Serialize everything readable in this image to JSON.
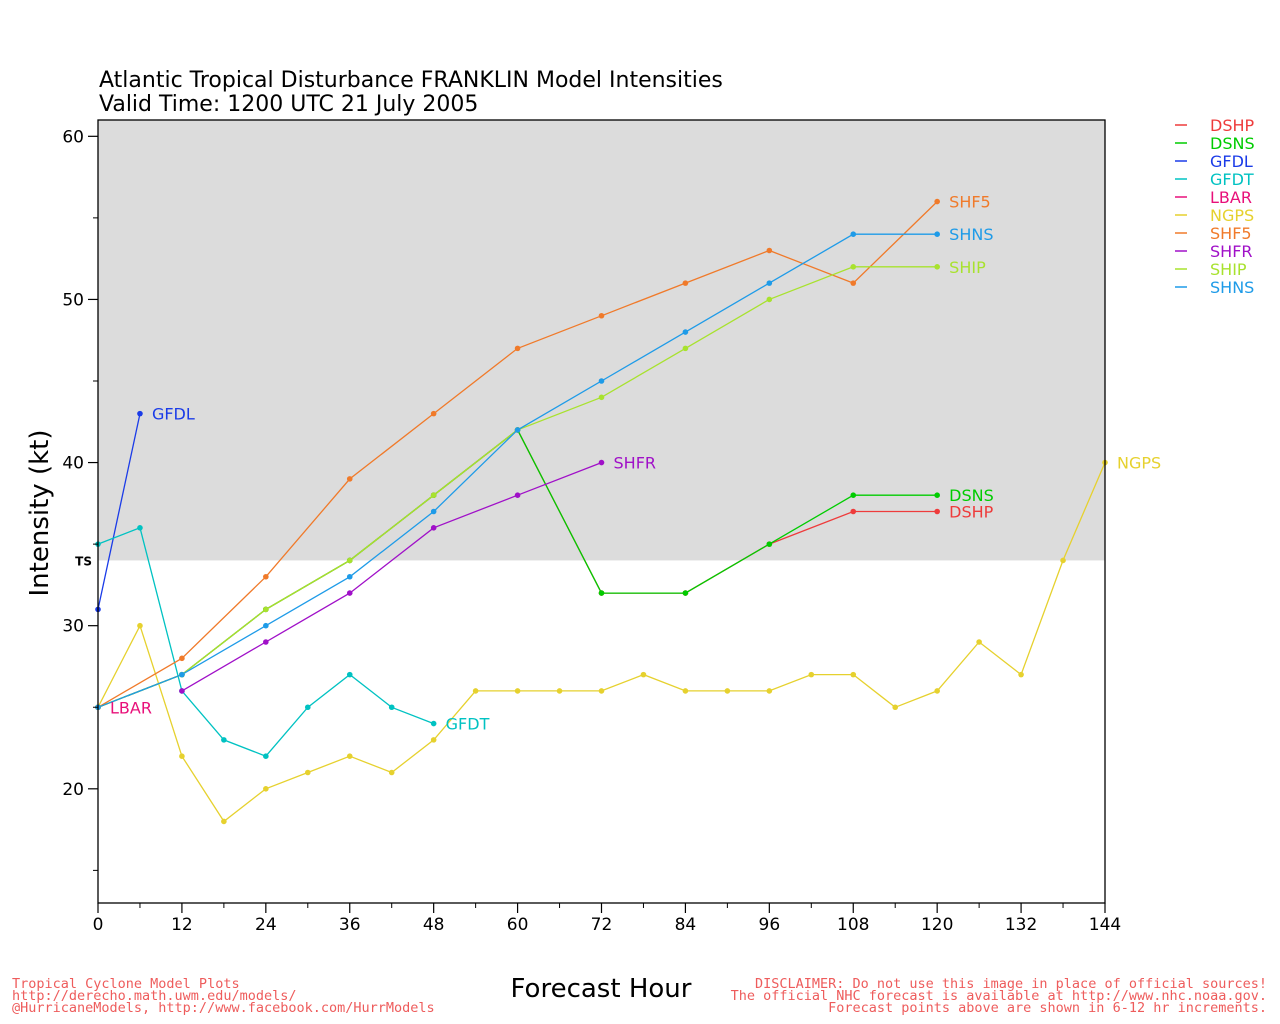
{
  "title": {
    "line1": "Atlantic Tropical Disturbance FRANKLIN Model Intensities",
    "line2": "Valid Time: 1200 UTC 21 July 2005"
  },
  "footer": {
    "left": [
      "Tropical Cyclone Model Plots",
      "http://derecho.math.uwm.edu/models/",
      "@HurricaneModels, http://www.facebook.com/HurrModels"
    ],
    "right": [
      "DISCLAIMER: Do not use this image in place of official sources!",
      "The official NHC forecast is available at http://www.nhc.noaa.gov.",
      "Forecast points above are shown in 6-12 hr increments."
    ]
  },
  "chart_data": {
    "type": "line",
    "xlabel": "Forecast Hour",
    "ylabel": "Intensity (kt)",
    "xlim": [
      0,
      144
    ],
    "ylim": [
      13,
      61
    ],
    "xticks": [
      0,
      12,
      24,
      36,
      48,
      60,
      72,
      84,
      96,
      108,
      120,
      132,
      144
    ],
    "yticks": [
      20,
      30,
      40,
      50,
      60
    ],
    "ts_threshold": 34,
    "ts_label": "TS",
    "shading": "#dcdcdc",
    "grid": false,
    "legend_position": "top-right, outside plot",
    "series": [
      {
        "name": "DSHP",
        "color": "#ee3b3b",
        "points": [
          [
            0,
            25
          ],
          [
            12,
            27
          ],
          [
            24,
            31
          ],
          [
            36,
            34
          ],
          [
            48,
            38
          ],
          [
            60,
            42
          ],
          [
            72,
            32
          ],
          [
            84,
            32
          ],
          [
            96,
            35
          ],
          [
            108,
            37
          ],
          [
            120,
            37
          ]
        ]
      },
      {
        "name": "DSNS",
        "color": "#00cc00",
        "points": [
          [
            0,
            25
          ],
          [
            12,
            27
          ],
          [
            24,
            31
          ],
          [
            36,
            34
          ],
          [
            48,
            38
          ],
          [
            60,
            42
          ],
          [
            72,
            32
          ],
          [
            84,
            32
          ],
          [
            96,
            35
          ],
          [
            108,
            38
          ],
          [
            120,
            38
          ]
        ]
      },
      {
        "name": "GFDL",
        "color": "#1a3be8",
        "points": [
          [
            0,
            31
          ],
          [
            6,
            43
          ]
        ]
      },
      {
        "name": "GFDT",
        "color": "#00c2c2",
        "points": [
          [
            0,
            35
          ],
          [
            6,
            36
          ],
          [
            12,
            26
          ],
          [
            18,
            23
          ],
          [
            24,
            22
          ],
          [
            30,
            25
          ],
          [
            36,
            27
          ],
          [
            42,
            25
          ],
          [
            48,
            24
          ]
        ]
      },
      {
        "name": "LBAR",
        "color": "#e8107a",
        "points": [
          [
            0,
            25
          ]
        ]
      },
      {
        "name": "NGPS",
        "color": "#e6d12e",
        "points": [
          [
            0,
            25
          ],
          [
            6,
            30
          ],
          [
            12,
            22
          ],
          [
            18,
            18
          ],
          [
            24,
            20
          ],
          [
            30,
            21
          ],
          [
            36,
            22
          ],
          [
            42,
            21
          ],
          [
            48,
            23
          ],
          [
            54,
            26
          ],
          [
            60,
            26
          ],
          [
            66,
            26
          ],
          [
            72,
            26
          ],
          [
            78,
            27
          ],
          [
            84,
            26
          ],
          [
            90,
            26
          ],
          [
            96,
            26
          ],
          [
            102,
            27
          ],
          [
            108,
            27
          ],
          [
            114,
            25
          ],
          [
            120,
            26
          ],
          [
            126,
            29
          ],
          [
            132,
            27
          ],
          [
            138,
            34
          ],
          [
            144,
            40
          ]
        ]
      },
      {
        "name": "SHF5",
        "color": "#f07a2a",
        "points": [
          [
            0,
            25
          ],
          [
            12,
            28
          ],
          [
            24,
            33
          ],
          [
            36,
            39
          ],
          [
            48,
            43
          ],
          [
            60,
            47
          ],
          [
            72,
            49
          ],
          [
            84,
            51
          ],
          [
            96,
            53
          ],
          [
            108,
            51
          ],
          [
            120,
            56
          ]
        ]
      },
      {
        "name": "SHFR",
        "color": "#a010c8",
        "points": [
          [
            12,
            26
          ],
          [
            24,
            29
          ],
          [
            36,
            32
          ],
          [
            48,
            36
          ],
          [
            60,
            38
          ],
          [
            72,
            40
          ]
        ]
      },
      {
        "name": "SHIP",
        "color": "#a8e22e",
        "points": [
          [
            0,
            25
          ],
          [
            12,
            27
          ],
          [
            24,
            31
          ],
          [
            36,
            34
          ],
          [
            48,
            38
          ],
          [
            60,
            42
          ],
          [
            72,
            44
          ],
          [
            84,
            47
          ],
          [
            96,
            50
          ],
          [
            108,
            52
          ],
          [
            120,
            52
          ]
        ]
      },
      {
        "name": "SHNS",
        "color": "#1e9be8",
        "points": [
          [
            0,
            25
          ],
          [
            12,
            27
          ],
          [
            24,
            30
          ],
          [
            36,
            33
          ],
          [
            48,
            37
          ],
          [
            60,
            42
          ],
          [
            72,
            45
          ],
          [
            84,
            48
          ],
          [
            96,
            51
          ],
          [
            108,
            54
          ],
          [
            120,
            54
          ]
        ]
      }
    ],
    "end_labels": [
      {
        "series": "GFDL",
        "text": "GFDL"
      },
      {
        "series": "SHF5",
        "text": "SHF5"
      },
      {
        "series": "SHNS",
        "text": "SHNS"
      },
      {
        "series": "SHIP",
        "text": "SHIP"
      },
      {
        "series": "SHFR",
        "text": "SHFR"
      },
      {
        "series": "DSNS",
        "text": "DSNS"
      },
      {
        "series": "DSHP",
        "text": "DSHP"
      },
      {
        "series": "NGPS",
        "text": "NGPS"
      },
      {
        "series": "GFDT",
        "text": "GFDT"
      },
      {
        "series": "LBAR",
        "text": "LBAR"
      }
    ]
  }
}
